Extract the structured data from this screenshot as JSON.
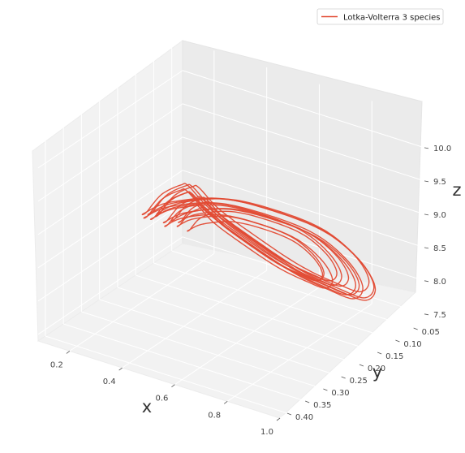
{
  "chart_data": {
    "type": "line",
    "projection": "3d",
    "title": "",
    "xlabel": "x",
    "ylabel": "y",
    "zlabel": "z",
    "xlim": [
      0.08,
      1.0
    ],
    "ylim": [
      0.02,
      0.42
    ],
    "zlim": [
      7.4,
      10.45
    ],
    "x_ticks": [
      "0.2",
      "0.4",
      "0.6",
      "0.8",
      "1.0"
    ],
    "y_ticks": [
      "0.05",
      "0.10",
      "0.15",
      "0.20",
      "0.25",
      "0.30",
      "0.35",
      "0.40"
    ],
    "z_ticks": [
      "7.5",
      "8.0",
      "8.5",
      "9.0",
      "9.5",
      "10.0"
    ],
    "grid": true,
    "legend_position": "top-right",
    "series": [
      {
        "name": "Lotka-Volterra 3 species",
        "color": "#e24a33",
        "x": [
          0.13,
          0.2,
          0.35,
          0.55,
          0.72,
          0.86,
          0.95,
          0.99,
          0.97,
          0.88,
          0.72,
          0.55,
          0.4,
          0.3,
          0.22,
          0.17,
          0.13
        ],
        "y": [
          0.04,
          0.03,
          0.03,
          0.04,
          0.05,
          0.08,
          0.12,
          0.19,
          0.27,
          0.34,
          0.38,
          0.4,
          0.36,
          0.28,
          0.18,
          0.09,
          0.04
        ],
        "z": [
          8.4,
          8.1,
          7.85,
          7.65,
          7.6,
          7.75,
          8.2,
          8.9,
          9.6,
          10.05,
          10.2,
          10.0,
          9.5,
          9.1,
          8.9,
          8.65,
          8.4
        ]
      }
    ]
  }
}
